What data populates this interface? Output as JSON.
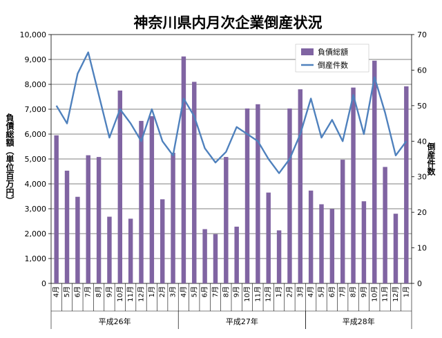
{
  "chart_data": {
    "type": "bar",
    "title": "神奈川県内月次企業倒産状況",
    "ylabel": "負債総額（単位百万円）",
    "y2label": "倒産件数",
    "ylim": [
      0,
      10000
    ],
    "y2lim": [
      0,
      70
    ],
    "yticks": [
      "0",
      "1,000",
      "2,000",
      "3,000",
      "4,000",
      "5,000",
      "6,000",
      "7,000",
      "8,000",
      "9,000",
      "10,000"
    ],
    "y2ticks": [
      "0",
      "10",
      "20",
      "30",
      "40",
      "50",
      "60",
      "70"
    ],
    "categories": [
      "4月",
      "5月",
      "6月",
      "7月",
      "8月",
      "9月",
      "10月",
      "11月",
      "12月",
      "1月",
      "2月",
      "3月",
      "4月",
      "5月",
      "6月",
      "7月",
      "8月",
      "9月",
      "10月",
      "11月",
      "12月",
      "1月",
      "2月",
      "3月",
      "4月",
      "5月",
      "6月",
      "7月",
      "8月",
      "9月",
      "10月",
      "11月",
      "12月",
      "1月"
    ],
    "groups": [
      {
        "label": "平成26年",
        "start": 0,
        "end": 12
      },
      {
        "label": "平成27年",
        "start": 12,
        "end": 24
      },
      {
        "label": "平成28年",
        "start": 24,
        "end": 34
      }
    ],
    "legend": "top-right",
    "series": [
      {
        "name": "負債総額",
        "kind": "bar",
        "axis": "left",
        "color": "#8064A2",
        "values": [
          5950,
          4530,
          3480,
          5150,
          5080,
          2680,
          7750,
          2600,
          6530,
          6720,
          3380,
          5250,
          9120,
          8100,
          2180,
          1980,
          5080,
          2280,
          7030,
          7200,
          3650,
          2130,
          7030,
          7800,
          3730,
          3180,
          2990,
          4970,
          7870,
          3300,
          8950,
          4680,
          2800,
          7920
        ]
      },
      {
        "name": "倒産件数",
        "kind": "line",
        "axis": "right",
        "color": "#4F81BD",
        "values": [
          50,
          45,
          59,
          65,
          53,
          41,
          49,
          45,
          40,
          49,
          40,
          36,
          52,
          47,
          38,
          34,
          37,
          44,
          42,
          40,
          35,
          31,
          35,
          42,
          52,
          41,
          46,
          40,
          53,
          42,
          58,
          48,
          36,
          40
        ]
      }
    ]
  }
}
